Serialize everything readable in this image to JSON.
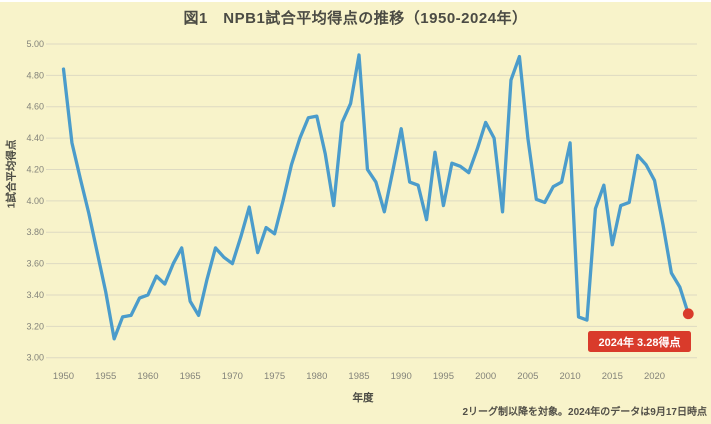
{
  "title": "図1　NPB1試合平均得点の推移（1950-2024年）",
  "footer": {
    "note": "2リーグ制以降を対象。2024年のデータは9月17日時点"
  },
  "colors": {
    "background": "#F8F3CA",
    "line": "#4B9CCB",
    "grid": "#DEDAC2",
    "accent_red": "#D93B2B",
    "title_text": "#4b4b44",
    "tick_text": "#83837a"
  },
  "chart_data": {
    "type": "line",
    "title": "図1　NPB1試合平均得点の推移（1950-2024年）",
    "xlabel": "年度",
    "ylabel": "1試合平均得点",
    "ylim": [
      3.0,
      5.0
    ],
    "grid": true,
    "legend": "none",
    "y_ticks": [
      "5.00",
      "4.80",
      "4.60",
      "4.40",
      "4.20",
      "4.00",
      "3.80",
      "3.60",
      "3.40",
      "3.20",
      "3.00"
    ],
    "x_ticks": [
      1950,
      1955,
      1960,
      1965,
      1970,
      1975,
      1980,
      1985,
      1990,
      1995,
      2000,
      2005,
      2010,
      2015,
      2020
    ],
    "years": [
      1950,
      1951,
      1952,
      1953,
      1954,
      1955,
      1956,
      1957,
      1958,
      1959,
      1960,
      1961,
      1962,
      1963,
      1964,
      1965,
      1966,
      1967,
      1968,
      1969,
      1970,
      1971,
      1972,
      1973,
      1974,
      1975,
      1976,
      1977,
      1978,
      1979,
      1980,
      1981,
      1982,
      1983,
      1984,
      1985,
      1986,
      1987,
      1988,
      1989,
      1990,
      1991,
      1992,
      1993,
      1994,
      1995,
      1996,
      1997,
      1998,
      1999,
      2000,
      2001,
      2002,
      2003,
      2004,
      2005,
      2006,
      2007,
      2008,
      2009,
      2010,
      2011,
      2012,
      2013,
      2014,
      2015,
      2016,
      2017,
      2018,
      2019,
      2020,
      2021,
      2022,
      2023,
      2024
    ],
    "values": [
      4.84,
      4.37,
      4.14,
      3.92,
      3.67,
      3.42,
      3.12,
      3.26,
      3.27,
      3.38,
      3.4,
      3.52,
      3.47,
      3.6,
      3.7,
      3.36,
      3.27,
      3.5,
      3.7,
      3.64,
      3.6,
      3.77,
      3.96,
      3.67,
      3.83,
      3.79,
      4.0,
      4.23,
      4.4,
      4.53,
      4.54,
      4.3,
      3.97,
      4.5,
      4.62,
      4.93,
      4.2,
      4.12,
      3.93,
      4.19,
      4.46,
      4.12,
      4.1,
      3.88,
      4.31,
      3.97,
      4.24,
      4.22,
      4.18,
      4.33,
      4.5,
      4.4,
      3.93,
      4.77,
      4.92,
      4.4,
      4.01,
      3.99,
      4.09,
      4.12,
      4.37,
      3.26,
      3.24,
      3.95,
      4.1,
      3.72,
      3.97,
      3.99,
      4.29,
      4.23,
      4.13,
      3.85,
      3.54,
      3.45,
      3.28
    ],
    "annotation": {
      "label": "2024年 3.28得点",
      "year": 2024,
      "value": 3.28
    }
  }
}
